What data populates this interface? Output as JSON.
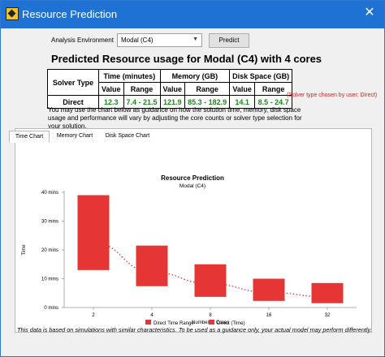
{
  "window": {
    "title": "Resource Prediction",
    "close_symbol": "✕"
  },
  "controls": {
    "env_label": "Analysis Environment",
    "env_value": "Modal (C4)",
    "predict_label": "Predict"
  },
  "heading": "Predicted Resource usage for Modal (C4) with 4 cores",
  "table": {
    "solver_type_header": "Solver Type",
    "groups": [
      "Time (minutes)",
      "Memory (GB)",
      "Disk Space (GB)"
    ],
    "subheaders": [
      "Value",
      "Range",
      "Value",
      "Range",
      "Value",
      "Range"
    ],
    "row_label": "Direct",
    "row_values": [
      "12.3",
      "7.4 - 21.5",
      "121.9",
      "85.3 - 182.9",
      "14.1",
      "8.5 - 24.7"
    ],
    "solver_note": "(Solver type chosen by user: Direct)"
  },
  "guidance": "You may use the chart below as guidance on how the solution time, memory, disk space usage and performance will vary by adjusting the core counts or solver type selection for your solution.",
  "tabs": [
    "Time Chart",
    "Memory Chart",
    "Disk Space Chart"
  ],
  "active_tab": "Time Chart",
  "footer_note": "This data is based on simulations with similar characteristics. To be used as a guidance only, your actual model may perform differently.",
  "colors": {
    "titlebar": "#1f72d3",
    "bar": "#e53535",
    "green": "#1a8a1a",
    "note_red": "#e02020"
  },
  "chart_data": {
    "type": "bar",
    "title": "Resource Prediction",
    "subtitle": "Modal (C4)",
    "xlabel": "Number of Cores",
    "ylabel": "Time",
    "categories": [
      "2",
      "4",
      "8",
      "16",
      "32"
    ],
    "ylim": [
      0,
      40
    ],
    "yticks": [
      0,
      10,
      20,
      30,
      40
    ],
    "ytick_labels": [
      "0 mins",
      "10 mins",
      "20 mins",
      "30 mins",
      "40 mins"
    ],
    "series": [
      {
        "name": "Direct Time Range",
        "kind": "range",
        "low": [
          13,
          7.4,
          3.7,
          2.3,
          1.5
        ],
        "high": [
          39,
          21.5,
          15,
          10,
          8.5
        ]
      },
      {
        "name": "Direct (Time)",
        "kind": "line",
        "style": "dotted",
        "values": [
          22.5,
          12.3,
          8.2,
          5.2,
          3.7
        ]
      }
    ],
    "legend_position": "bottom",
    "grid": false
  }
}
